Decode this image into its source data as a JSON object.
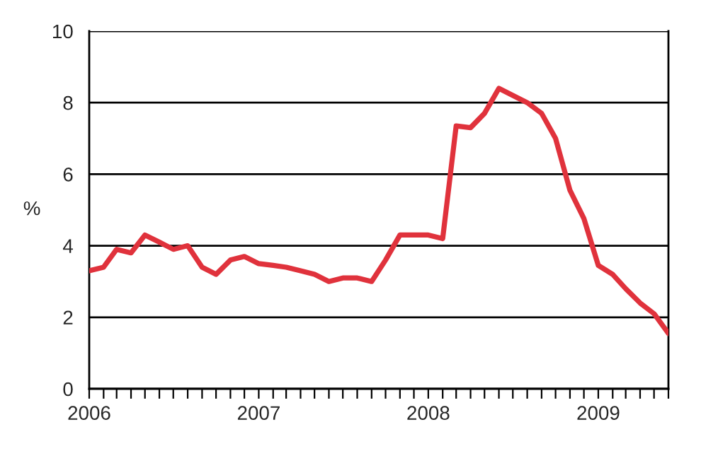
{
  "chart_data": {
    "type": "line",
    "ylabel": "%",
    "x": [
      "2006-01",
      "2006-02",
      "2006-03",
      "2006-04",
      "2006-05",
      "2006-06",
      "2006-07",
      "2006-08",
      "2006-09",
      "2006-10",
      "2006-11",
      "2006-12",
      "2007-01",
      "2007-02",
      "2007-03",
      "2007-04",
      "2007-05",
      "2007-06",
      "2007-07",
      "2007-08",
      "2007-09",
      "2007-10",
      "2007-11",
      "2007-12",
      "2008-01",
      "2008-02",
      "2008-03",
      "2008-04",
      "2008-05",
      "2008-06",
      "2008-07",
      "2008-08",
      "2008-09",
      "2008-10",
      "2008-11",
      "2008-12",
      "2009-01",
      "2009-02",
      "2009-03",
      "2009-04",
      "2009-05",
      "2009-06"
    ],
    "series": [
      {
        "color": "#e0323c",
        "values": [
          3.3,
          3.4,
          3.9,
          3.8,
          4.3,
          4.1,
          3.9,
          4.0,
          3.4,
          3.2,
          3.6,
          3.7,
          3.5,
          3.45,
          3.4,
          3.3,
          3.2,
          3.0,
          3.1,
          3.1,
          3.0,
          3.6,
          4.3,
          4.3,
          4.3,
          4.2,
          7.35,
          7.3,
          7.7,
          8.4,
          8.2,
          8.0,
          7.7,
          7.0,
          5.55,
          4.76,
          3.45,
          3.2,
          2.8,
          2.4,
          2.1,
          1.55
        ]
      }
    ],
    "xlim": [
      "2006-01",
      "2009-06"
    ],
    "xticks": [
      {
        "value": "2006-01",
        "label": "2006"
      },
      {
        "value": "2006-02",
        "label": null
      },
      {
        "value": "2006-03",
        "label": null
      },
      {
        "value": "2006-04",
        "label": null
      },
      {
        "value": "2006-05",
        "label": null
      },
      {
        "value": "2006-06",
        "label": null
      },
      {
        "value": "2006-07",
        "label": null
      },
      {
        "value": "2006-08",
        "label": null
      },
      {
        "value": "2006-09",
        "label": null
      },
      {
        "value": "2006-10",
        "label": null
      },
      {
        "value": "2006-11",
        "label": null
      },
      {
        "value": "2006-12",
        "label": null
      },
      {
        "value": "2007-01",
        "label": "2007"
      },
      {
        "value": "2007-02",
        "label": null
      },
      {
        "value": "2007-03",
        "label": null
      },
      {
        "value": "2007-04",
        "label": null
      },
      {
        "value": "2007-05",
        "label": null
      },
      {
        "value": "2007-06",
        "label": null
      },
      {
        "value": "2007-07",
        "label": null
      },
      {
        "value": "2007-08",
        "label": null
      },
      {
        "value": "2007-09",
        "label": null
      },
      {
        "value": "2007-10",
        "label": null
      },
      {
        "value": "2007-11",
        "label": null
      },
      {
        "value": "2007-12",
        "label": null
      },
      {
        "value": "2008-01",
        "label": "2008"
      },
      {
        "value": "2008-02",
        "label": null
      },
      {
        "value": "2008-03",
        "label": null
      },
      {
        "value": "2008-04",
        "label": null
      },
      {
        "value": "2008-05",
        "label": null
      },
      {
        "value": "2008-06",
        "label": null
      },
      {
        "value": "2008-07",
        "label": null
      },
      {
        "value": "2008-08",
        "label": null
      },
      {
        "value": "2008-09",
        "label": null
      },
      {
        "value": "2008-10",
        "label": null
      },
      {
        "value": "2008-11",
        "label": null
      },
      {
        "value": "2008-12",
        "label": null
      },
      {
        "value": "2009-01",
        "label": "2009"
      },
      {
        "value": "2009-02",
        "label": null
      },
      {
        "value": "2009-03",
        "label": null
      },
      {
        "value": "2009-04",
        "label": null
      },
      {
        "value": "2009-05",
        "label": null
      },
      {
        "value": "2009-06",
        "label": null
      }
    ],
    "ylim": [
      0,
      10
    ],
    "yticks": [
      0,
      2,
      4,
      6,
      8,
      10
    ],
    "grid": "y",
    "marker": "none",
    "line_style": "solid"
  }
}
